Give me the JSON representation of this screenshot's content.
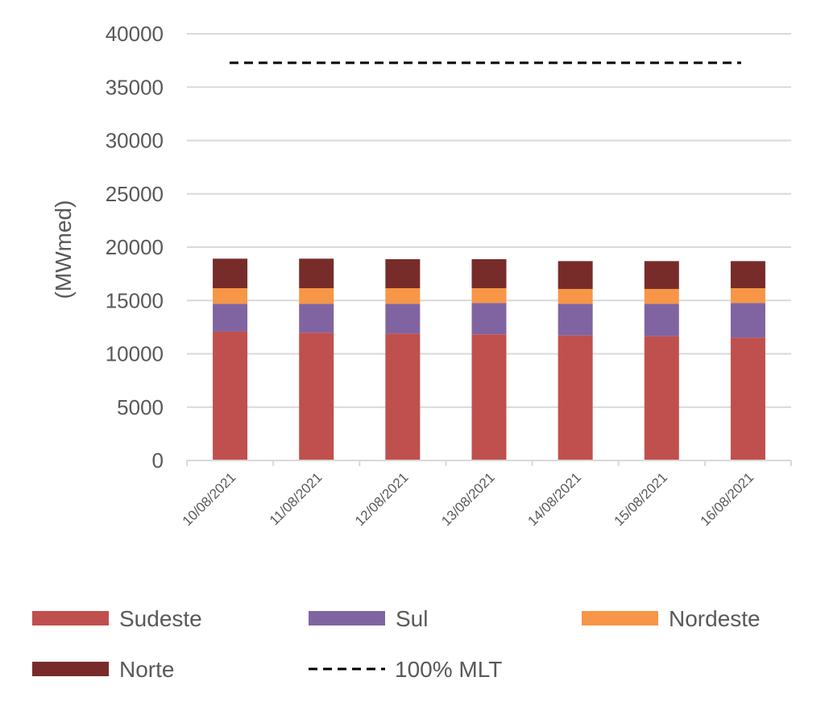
{
  "chart_data": {
    "type": "bar",
    "stacked": true,
    "title": "",
    "xlabel": "",
    "ylabel": "(MWmed)",
    "ylim": [
      0,
      40000
    ],
    "yticks": [
      "0",
      "5000",
      "10000",
      "15000",
      "20000",
      "25000",
      "30000",
      "35000",
      "40000"
    ],
    "grid": true,
    "legend_position": "bottom",
    "categories": [
      "10/08/2021",
      "11/08/2021",
      "12/08/2021",
      "13/08/2021",
      "14/08/2021",
      "15/08/2021",
      "16/08/2021"
    ],
    "series": [
      {
        "name": "Sudeste",
        "color": "#C0504D",
        "values": [
          12080,
          11980,
          11900,
          11830,
          11720,
          11650,
          11520
        ]
      },
      {
        "name": "Sul",
        "color": "#8064A2",
        "values": [
          2610,
          2710,
          2790,
          2940,
          2970,
          3040,
          3250
        ]
      },
      {
        "name": "Nordeste",
        "color": "#F79646",
        "values": [
          1460,
          1460,
          1460,
          1380,
          1390,
          1390,
          1380
        ]
      },
      {
        "name": "Norte",
        "color": "#772C2A",
        "values": [
          2770,
          2770,
          2720,
          2720,
          2610,
          2610,
          2540
        ]
      }
    ],
    "reference_line": {
      "name": "100% MLT",
      "value": 37280,
      "color": "#000000",
      "style": "dashed"
    }
  }
}
